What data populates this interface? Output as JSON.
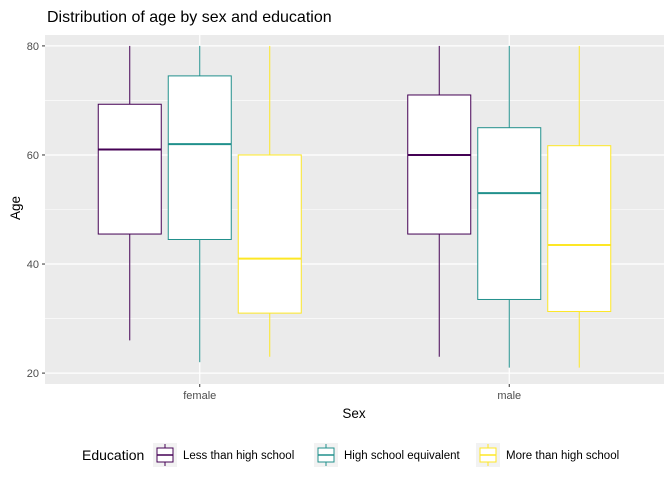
{
  "chart_data": {
    "type": "boxplot",
    "title": "Distribution of age by sex and education",
    "xlabel": "Sex",
    "ylabel": "Age",
    "categories": [
      "female",
      "male"
    ],
    "ylim": [
      18,
      82
    ],
    "yticks": [
      20,
      40,
      60,
      80
    ],
    "grid": true,
    "legend": {
      "title": "Education",
      "position": "bottom"
    },
    "series": [
      {
        "name": "Less than high school",
        "color": "#440154",
        "boxes": [
          {
            "min": 26,
            "q1": 45.5,
            "median": 61,
            "q3": 69.3,
            "max": 80
          },
          {
            "min": 23,
            "q1": 45.5,
            "median": 60,
            "q3": 71,
            "max": 80
          }
        ]
      },
      {
        "name": "High school equivalent",
        "color": "#21908C",
        "boxes": [
          {
            "min": 22,
            "q1": 44.5,
            "median": 62,
            "q3": 74.5,
            "max": 80
          },
          {
            "min": 21,
            "q1": 33.5,
            "median": 53,
            "q3": 65,
            "max": 80
          }
        ]
      },
      {
        "name": "More than high school",
        "color": "#FDE725",
        "boxes": [
          {
            "min": 23,
            "q1": 31,
            "median": 41,
            "q3": 60,
            "max": 80
          },
          {
            "min": 21,
            "q1": 31.3,
            "median": 43.5,
            "q3": 61.7,
            "max": 80
          }
        ]
      }
    ]
  }
}
